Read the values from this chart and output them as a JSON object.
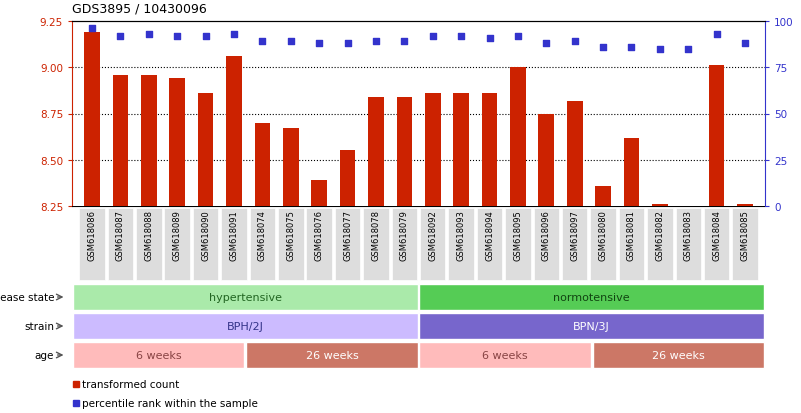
{
  "title": "GDS3895 / 10430096",
  "samples": [
    "GSM618086",
    "GSM618087",
    "GSM618088",
    "GSM618089",
    "GSM618090",
    "GSM618091",
    "GSM618074",
    "GSM618075",
    "GSM618076",
    "GSM618077",
    "GSM618078",
    "GSM618079",
    "GSM618092",
    "GSM618093",
    "GSM618094",
    "GSM618095",
    "GSM618096",
    "GSM618097",
    "GSM618080",
    "GSM618081",
    "GSM618082",
    "GSM618083",
    "GSM618084",
    "GSM618085"
  ],
  "bar_values": [
    9.19,
    8.96,
    8.96,
    8.94,
    8.86,
    9.06,
    8.7,
    8.67,
    8.39,
    8.55,
    8.84,
    8.84,
    8.86,
    8.86,
    8.86,
    9.0,
    8.75,
    8.82,
    8.36,
    8.62,
    8.26,
    8.24,
    9.01,
    8.26
  ],
  "percentile_values": [
    96,
    92,
    93,
    92,
    92,
    93,
    89,
    89,
    88,
    88,
    89,
    89,
    92,
    92,
    91,
    92,
    88,
    89,
    86,
    86,
    85,
    85,
    93,
    88
  ],
  "bar_color": "#cc2200",
  "dot_color": "#3333cc",
  "ylim_left": [
    8.25,
    9.25
  ],
  "ylim_right": [
    0,
    100
  ],
  "yticks_left": [
    8.25,
    8.5,
    8.75,
    9.0,
    9.25
  ],
  "yticks_right": [
    0,
    25,
    50,
    75,
    100
  ],
  "gridlines": [
    8.5,
    8.75,
    9.0
  ],
  "disease_state_data": [
    {
      "label": "hypertensive",
      "start": 0,
      "end": 12,
      "color": "#aaeaaa",
      "text_color": "#226622"
    },
    {
      "label": "normotensive",
      "start": 12,
      "end": 24,
      "color": "#55cc55",
      "text_color": "#114411"
    }
  ],
  "strain_data": [
    {
      "label": "BPH/2J",
      "start": 0,
      "end": 12,
      "color": "#ccbbff",
      "text_color": "#333388"
    },
    {
      "label": "BPN/3J",
      "start": 12,
      "end": 24,
      "color": "#7766cc",
      "text_color": "white"
    }
  ],
  "age_groups": [
    {
      "label": "6 weeks",
      "start": 0,
      "end": 6,
      "color": "#ffbbbb",
      "text_color": "#884444"
    },
    {
      "label": "26 weeks",
      "start": 6,
      "end": 12,
      "color": "#cc7766",
      "text_color": "white"
    },
    {
      "label": "6 weeks",
      "start": 12,
      "end": 18,
      "color": "#ffbbbb",
      "text_color": "#884444"
    },
    {
      "label": "26 weeks",
      "start": 18,
      "end": 24,
      "color": "#cc7766",
      "text_color": "white"
    }
  ],
  "row_labels": [
    "disease state",
    "strain",
    "age"
  ],
  "legend_items": [
    {
      "label": "transformed count",
      "color": "#cc2200"
    },
    {
      "label": "percentile rank within the sample",
      "color": "#3333cc"
    }
  ]
}
